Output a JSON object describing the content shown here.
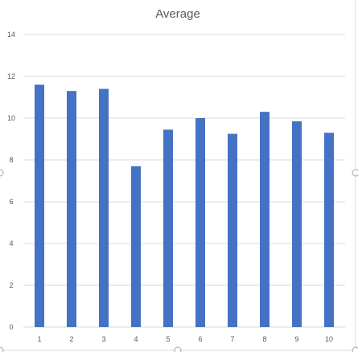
{
  "chart_data": {
    "type": "bar",
    "title": "Average",
    "xlabel": "",
    "ylabel": "",
    "categories": [
      "1",
      "2",
      "3",
      "4",
      "5",
      "6",
      "7",
      "8",
      "9",
      "10"
    ],
    "values": [
      11.6,
      11.3,
      11.4,
      7.7,
      9.45,
      10.0,
      9.25,
      10.3,
      9.85,
      9.3
    ],
    "ylim": [
      0,
      14
    ],
    "yticks": [
      0,
      2,
      4,
      6,
      8,
      10,
      12,
      14
    ],
    "grid": true,
    "legend": "none",
    "colors": {
      "bar": "#4472C4",
      "grid": "#d9d9d9",
      "text": "#595959",
      "frame": "#d9d9d9"
    }
  }
}
